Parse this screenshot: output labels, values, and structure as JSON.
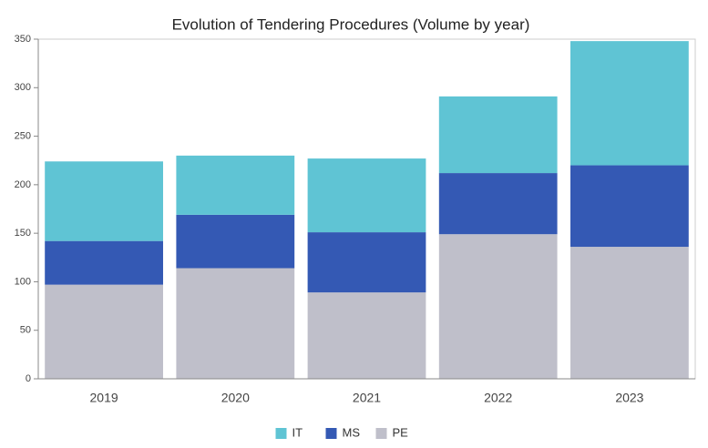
{
  "chart_data": {
    "type": "stacked_bar",
    "title": "Evolution of Tendering Procedures (Volume by year)",
    "categories": [
      "2019",
      "2020",
      "2021",
      "2022",
      "2023"
    ],
    "series": [
      {
        "name": "IT",
        "color": "#5fc4d4",
        "values": [
          82,
          61,
          76,
          79,
          128
        ]
      },
      {
        "name": "MS",
        "color": "#3459b4",
        "values": [
          45,
          55,
          62,
          63,
          84
        ]
      },
      {
        "name": "PE",
        "color": "#bfbfca",
        "values": [
          97,
          114,
          89,
          149,
          136
        ]
      }
    ],
    "ylim": [
      0,
      350
    ],
    "yticks": [
      0,
      50,
      100,
      150,
      200,
      250,
      300,
      350
    ],
    "legend": "bottom"
  }
}
